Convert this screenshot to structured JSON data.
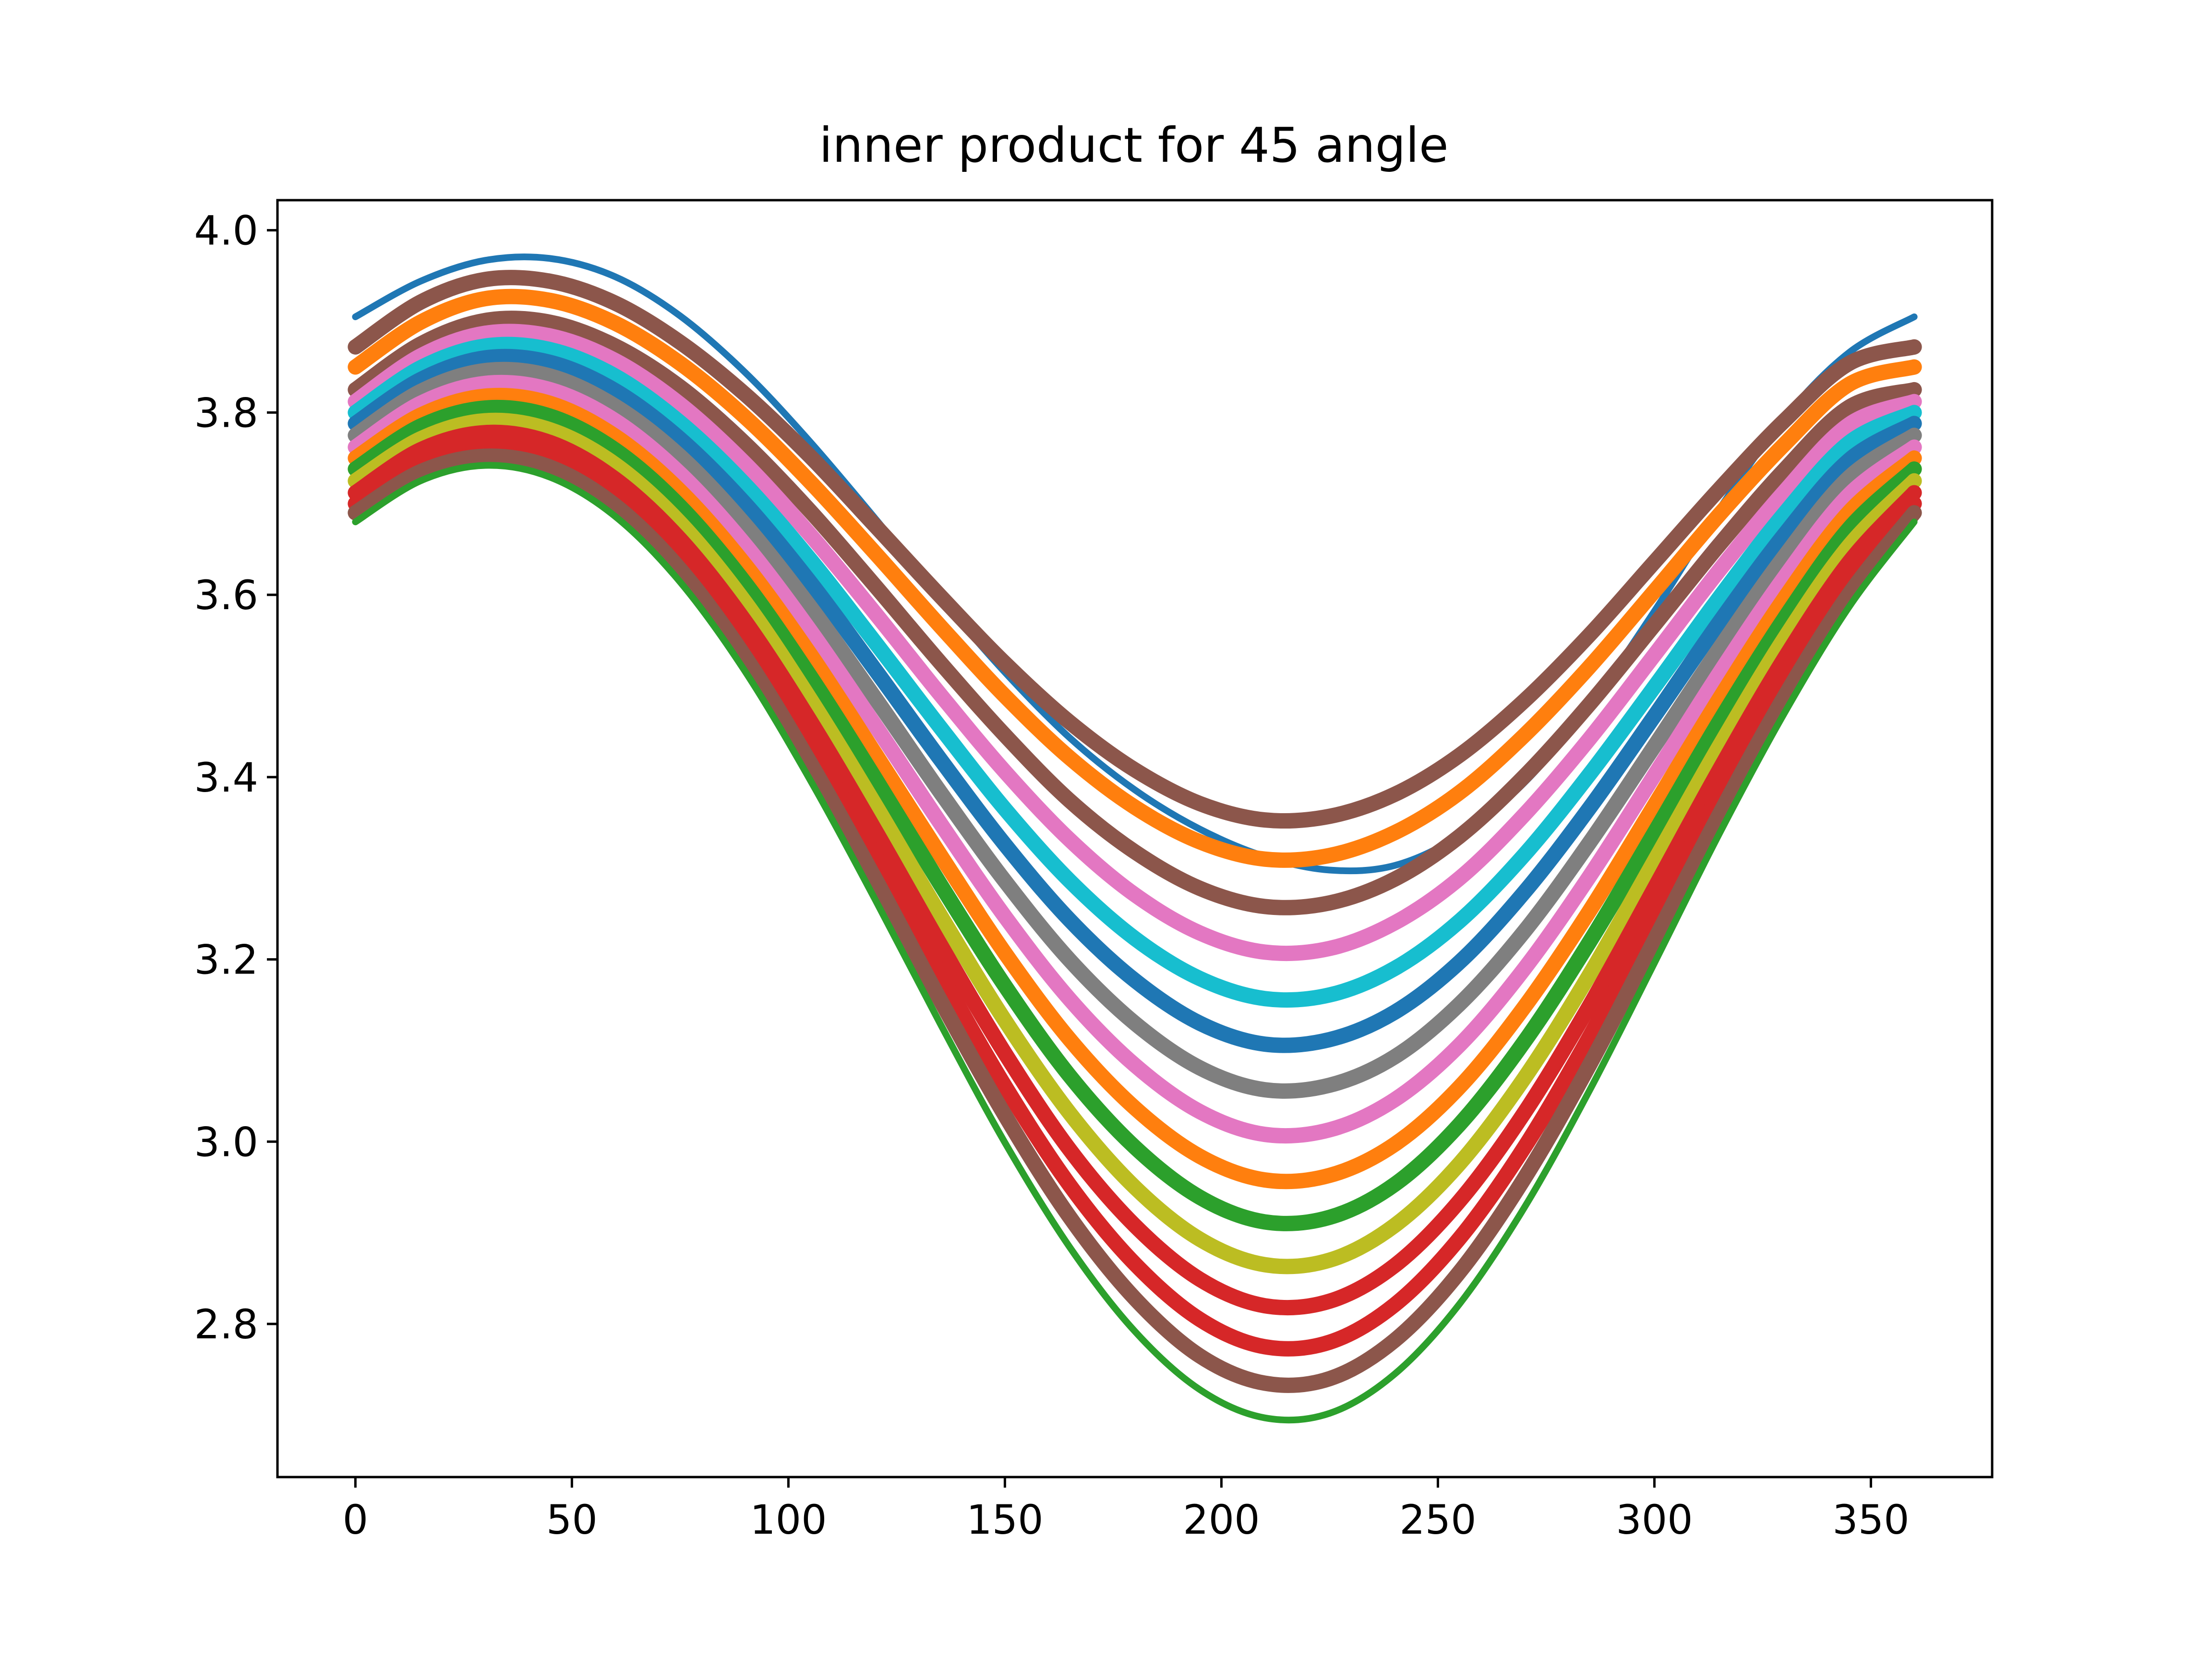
{
  "chart_data": {
    "type": "line",
    "title": "inner product for 45 angle",
    "xlabel": "",
    "ylabel": "",
    "xlim": [
      -18,
      378
    ],
    "ylim": [
      2.632,
      4.033
    ],
    "xticks": [
      0,
      50,
      100,
      150,
      200,
      250,
      300,
      350
    ],
    "xtick_labels": [
      "0",
      "50",
      "100",
      "150",
      "200",
      "250",
      "300",
      "350"
    ],
    "yticks": [
      2.8,
      3.0,
      3.2,
      3.4,
      3.6,
      3.8,
      4.0
    ],
    "ytick_labels": [
      "2.8",
      "3.0",
      "3.2",
      "3.4",
      "3.6",
      "3.8",
      "4.0"
    ],
    "grid": false,
    "legend": "none",
    "x": [
      0,
      15,
      30,
      45,
      60,
      75,
      90,
      105,
      120,
      135,
      150,
      165,
      180,
      195,
      210,
      225,
      240,
      255,
      270,
      285,
      300,
      315,
      330,
      345,
      360
    ],
    "series": [
      {
        "color": "#2ca02c",
        "values": [
          3.68,
          3.725,
          3.742,
          3.729,
          3.686,
          3.614,
          3.516,
          3.397,
          3.266,
          3.13,
          2.999,
          2.884,
          2.792,
          2.728,
          2.697,
          2.702,
          2.745,
          2.822,
          2.928,
          3.056,
          3.196,
          3.338,
          3.47,
          3.587,
          3.68
        ]
      },
      {
        "color": "#8c564b",
        "values": [
          3.69,
          3.735,
          3.752,
          3.74,
          3.698,
          3.628,
          3.532,
          3.416,
          3.289,
          3.156,
          3.029,
          2.917,
          2.828,
          2.765,
          2.735,
          2.74,
          2.782,
          2.857,
          2.96,
          3.084,
          3.221,
          3.359,
          3.488,
          3.601,
          3.69
        ]
      },
      {
        "color": "#d62728",
        "values": [
          3.7,
          3.747,
          3.765,
          3.753,
          3.712,
          3.644,
          3.551,
          3.438,
          3.314,
          3.185,
          3.061,
          2.952,
          2.866,
          2.805,
          2.775,
          2.78,
          2.821,
          2.894,
          2.994,
          3.115,
          3.248,
          3.382,
          3.508,
          3.618,
          3.7
        ]
      },
      {
        "color": "#d62728",
        "values": [
          3.712,
          3.759,
          3.778,
          3.767,
          3.727,
          3.661,
          3.571,
          3.462,
          3.342,
          3.217,
          3.097,
          2.991,
          2.908,
          2.849,
          2.82,
          2.825,
          2.864,
          2.935,
          3.032,
          3.149,
          3.278,
          3.408,
          3.53,
          3.636,
          3.712
        ]
      },
      {
        "color": "#bcbd22",
        "values": [
          3.725,
          3.771,
          3.791,
          3.781,
          3.743,
          3.679,
          3.592,
          3.486,
          3.37,
          3.249,
          3.133,
          3.031,
          2.95,
          2.893,
          2.865,
          2.87,
          2.908,
          2.976,
          3.07,
          3.183,
          3.308,
          3.434,
          3.552,
          3.654,
          3.725
        ]
      },
      {
        "color": "#2ca02c",
        "values": [
          3.738,
          3.785,
          3.805,
          3.796,
          3.759,
          3.697,
          3.613,
          3.511,
          3.399,
          3.283,
          3.171,
          3.072,
          2.994,
          2.939,
          2.912,
          2.917,
          2.953,
          3.019,
          3.11,
          3.219,
          3.339,
          3.461,
          3.574,
          3.673,
          3.738
        ]
      },
      {
        "color": "#ff7f0e",
        "values": [
          3.75,
          3.797,
          3.818,
          3.81,
          3.774,
          3.714,
          3.633,
          3.535,
          3.426,
          3.315,
          3.207,
          3.112,
          3.037,
          2.984,
          2.958,
          2.963,
          2.997,
          3.06,
          3.148,
          3.253,
          3.369,
          3.486,
          3.596,
          3.691,
          3.75
        ]
      },
      {
        "color": "#e377c2",
        "values": [
          3.762,
          3.81,
          3.832,
          3.825,
          3.791,
          3.733,
          3.655,
          3.561,
          3.457,
          3.35,
          3.247,
          3.156,
          3.084,
          3.033,
          3.008,
          3.013,
          3.046,
          3.106,
          3.19,
          3.291,
          3.402,
          3.514,
          3.619,
          3.71,
          3.762
        ]
      },
      {
        "color": "#7f7f7f",
        "values": [
          3.775,
          3.823,
          3.846,
          3.84,
          3.807,
          3.752,
          3.677,
          3.587,
          3.487,
          3.384,
          3.286,
          3.199,
          3.13,
          3.081,
          3.057,
          3.062,
          3.093,
          3.151,
          3.231,
          3.328,
          3.434,
          3.541,
          3.642,
          3.729,
          3.775
        ]
      },
      {
        "color": "#1f77b4",
        "values": [
          3.788,
          3.836,
          3.86,
          3.855,
          3.824,
          3.771,
          3.7,
          3.614,
          3.518,
          3.42,
          3.326,
          3.243,
          3.177,
          3.13,
          3.107,
          3.112,
          3.142,
          3.197,
          3.274,
          3.366,
          3.467,
          3.57,
          3.666,
          3.748,
          3.788
        ]
      },
      {
        "color": "#17becf",
        "values": [
          3.8,
          3.849,
          3.873,
          3.869,
          3.84,
          3.789,
          3.721,
          3.639,
          3.548,
          3.455,
          3.365,
          3.286,
          3.223,
          3.179,
          3.157,
          3.161,
          3.19,
          3.242,
          3.315,
          3.403,
          3.499,
          3.597,
          3.689,
          3.767,
          3.8
        ]
      },
      {
        "color": "#e377c2",
        "values": [
          3.812,
          3.862,
          3.887,
          3.884,
          3.857,
          3.809,
          3.744,
          3.666,
          3.58,
          3.491,
          3.406,
          3.331,
          3.271,
          3.229,
          3.208,
          3.212,
          3.24,
          3.289,
          3.359,
          3.442,
          3.534,
          3.627,
          3.713,
          3.787,
          3.812
        ]
      },
      {
        "color": "#8c564b",
        "values": [
          3.825,
          3.875,
          3.901,
          3.899,
          3.873,
          3.828,
          3.766,
          3.692,
          3.61,
          3.526,
          3.446,
          3.374,
          3.318,
          3.278,
          3.258,
          3.262,
          3.288,
          3.335,
          3.401,
          3.48,
          3.567,
          3.655,
          3.737,
          3.806,
          3.825
        ]
      },
      {
        "color": "#ff7f0e",
        "values": [
          3.85,
          3.899,
          3.925,
          3.923,
          3.898,
          3.854,
          3.795,
          3.724,
          3.646,
          3.566,
          3.489,
          3.421,
          3.367,
          3.329,
          3.31,
          3.314,
          3.339,
          3.383,
          3.446,
          3.521,
          3.604,
          3.688,
          3.765,
          3.831,
          3.85
        ]
      },
      {
        "color": "#8c564b",
        "values": [
          3.872,
          3.921,
          3.946,
          3.944,
          3.92,
          3.877,
          3.82,
          3.752,
          3.676,
          3.599,
          3.525,
          3.46,
          3.408,
          3.371,
          3.353,
          3.357,
          3.381,
          3.424,
          3.484,
          3.556,
          3.636,
          3.716,
          3.791,
          3.854,
          3.872
        ]
      },
      {
        "color": "#1f77b4",
        "values": [
          3.905,
          3.944,
          3.967,
          3.969,
          3.949,
          3.906,
          3.844,
          3.768,
          3.684,
          3.597,
          3.515,
          3.443,
          3.386,
          3.343,
          3.313,
          3.298,
          3.303,
          3.336,
          3.394,
          3.479,
          3.582,
          3.694,
          3.794,
          3.866,
          3.905
        ]
      }
    ]
  }
}
